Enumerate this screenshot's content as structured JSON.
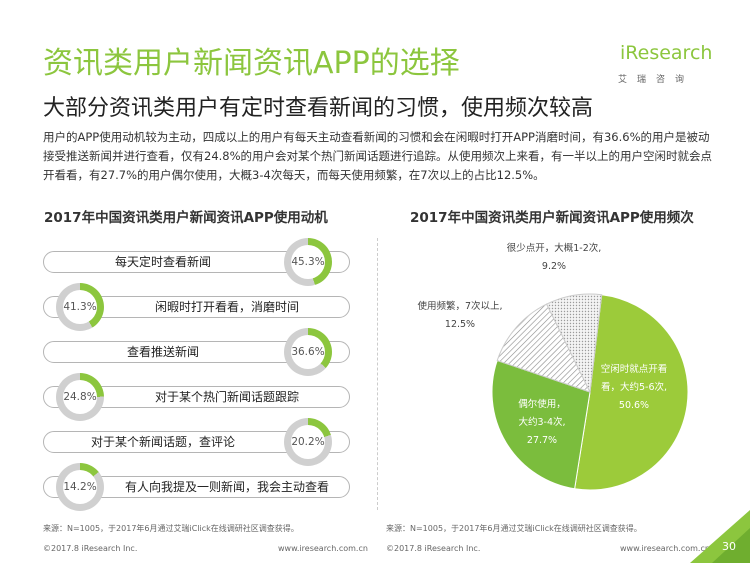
{
  "header": {
    "title": "资讯类用户新闻资讯APP的选择",
    "subtitle": "大部分资讯类用户有定时查看新闻的习惯，使用频次较高",
    "logo_brand": "iResearch",
    "logo_slogan": "艾瑞咨询"
  },
  "intro": "用户的APP使用动机较为主动，四成以上的用户有每天主动查看新闻的习惯和会在闲暇时打开APP消磨时间，有36.6%的用户是被动接受推送新闻并进行查看，仅有24.8%的用户会对某个热门新闻话题进行追踪。从使用频次上来看，有一半以上的用户空闲时就会点开看看，有27.7%的用户偶尔使用，大概3-4次每天，而每天使用频繁，在7次以上的占比12.5%。",
  "colors": {
    "accent": "#8cc63e",
    "ring_track": "#d0d0d0",
    "pie_light": "#9ccb3a",
    "pie_mid": "#7bbd3d",
    "pie_dark": "#5e9a36"
  },
  "chart_data": [
    {
      "type": "bar",
      "title": "2017年中国资讯类用户新闻资讯APP使用动机",
      "categories": [
        "每天定时查看新闻",
        "闲暇时打开看看，消磨时间",
        "查看推送新闻",
        "对于某个热门新闻话题跟踪",
        "对于某个新闻话题，查评论",
        "有人向我提及一则新闻，我会主动查看"
      ],
      "values": [
        45.3,
        41.3,
        36.6,
        24.8,
        20.2,
        14.2
      ],
      "value_labels": [
        "45.3%",
        "41.3%",
        "36.6%",
        "24.8%",
        "20.2%",
        "14.2%"
      ],
      "unit": "%",
      "source": "来源：N=1005，于2017年6月通过艾瑞iClick在线调研社区调查获得。"
    },
    {
      "type": "pie",
      "title": "2017年中国资讯类用户新闻资讯APP使用频次",
      "slices": [
        {
          "label_lines": [
            "空闲时就点开看",
            "看，大约5-6次,",
            "50.6%"
          ],
          "value": 50.6
        },
        {
          "label_lines": [
            "偶尔使用，",
            "大约3-4次,",
            "27.7%"
          ],
          "value": 27.7
        },
        {
          "label_lines": [
            "使用频繁，7次以上,",
            "12.5%"
          ],
          "value": 12.5
        },
        {
          "label_lines": [
            "很少点开，大概1-2次,",
            "9.2%"
          ],
          "value": 9.2
        }
      ],
      "source": "来源：N=1005，于2017年6月通过艾瑞iClick在线调研社区调查获得。"
    }
  ],
  "footer": {
    "copyright": "©2017.8 iResearch Inc.",
    "website": "www.iresearch.com.cn",
    "page": "30"
  }
}
